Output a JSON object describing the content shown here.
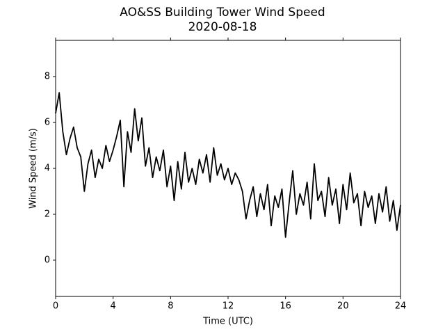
{
  "chart_data": {
    "type": "line",
    "title": "AO&SS Building Tower Wind Speed",
    "subtitle": "2020-08-18",
    "x_label": "Time (UTC)",
    "y_label": "Wind Speed (m/s)",
    "xlim": [
      0,
      24
    ],
    "xticks": [
      0,
      4,
      8,
      12,
      16,
      20,
      24
    ],
    "ylim": [
      -1.58,
      9.58
    ],
    "yticks": [
      0,
      2,
      4,
      6,
      8
    ],
    "grid": false,
    "x": [
      0,
      0.25,
      0.5,
      0.75,
      1,
      1.25,
      1.5,
      1.75,
      2,
      2.25,
      2.5,
      2.75,
      3,
      3.25,
      3.5,
      3.75,
      4,
      4.25,
      4.5,
      4.75,
      5,
      5.25,
      5.5,
      5.75,
      6,
      6.25,
      6.5,
      6.75,
      7,
      7.25,
      7.5,
      7.75,
      8,
      8.25,
      8.5,
      8.75,
      9,
      9.25,
      9.5,
      9.75,
      10,
      10.25,
      10.5,
      10.75,
      11,
      11.25,
      11.5,
      11.75,
      12,
      12.25,
      12.5,
      12.75,
      13,
      13.25,
      13.5,
      13.75,
      14,
      14.25,
      14.5,
      14.75,
      15,
      15.25,
      15.5,
      15.75,
      16,
      16.25,
      16.5,
      16.75,
      17,
      17.25,
      17.5,
      17.75,
      18,
      18.25,
      18.5,
      18.75,
      19,
      19.25,
      19.5,
      19.75,
      20,
      20.25,
      20.5,
      20.75,
      21,
      21.25,
      21.5,
      21.75,
      22,
      22.25,
      22.5,
      22.75,
      23,
      23.25,
      23.5,
      23.75,
      24
    ],
    "series": [
      {
        "name": "Wind Speed",
        "color": "#000000",
        "values": [
          6.4,
          7.3,
          5.6,
          4.6,
          5.3,
          5.8,
          4.9,
          4.5,
          3.0,
          4.2,
          4.8,
          3.6,
          4.4,
          4.0,
          5.0,
          4.3,
          4.8,
          5.4,
          6.1,
          3.2,
          5.6,
          4.7,
          6.6,
          5.2,
          6.2,
          4.1,
          4.9,
          3.6,
          4.5,
          3.9,
          4.8,
          3.2,
          4.1,
          2.6,
          4.3,
          3.1,
          4.7,
          3.4,
          4.0,
          3.3,
          4.4,
          3.8,
          4.6,
          3.4,
          4.9,
          3.7,
          4.2,
          3.5,
          4.0,
          3.3,
          3.8,
          3.5,
          3.0,
          1.8,
          2.6,
          3.2,
          1.9,
          2.9,
          2.2,
          3.3,
          1.5,
          2.8,
          2.3,
          3.1,
          1.0,
          2.5,
          3.9,
          2.0,
          2.9,
          2.4,
          3.4,
          1.8,
          4.2,
          2.6,
          3.0,
          1.9,
          3.6,
          2.4,
          3.1,
          1.6,
          3.3,
          2.2,
          3.8,
          2.5,
          2.9,
          1.5,
          3.0,
          2.3,
          2.8,
          1.6,
          2.9,
          2.1,
          3.2,
          1.7,
          2.6,
          1.3,
          2.4
        ]
      }
    ]
  }
}
